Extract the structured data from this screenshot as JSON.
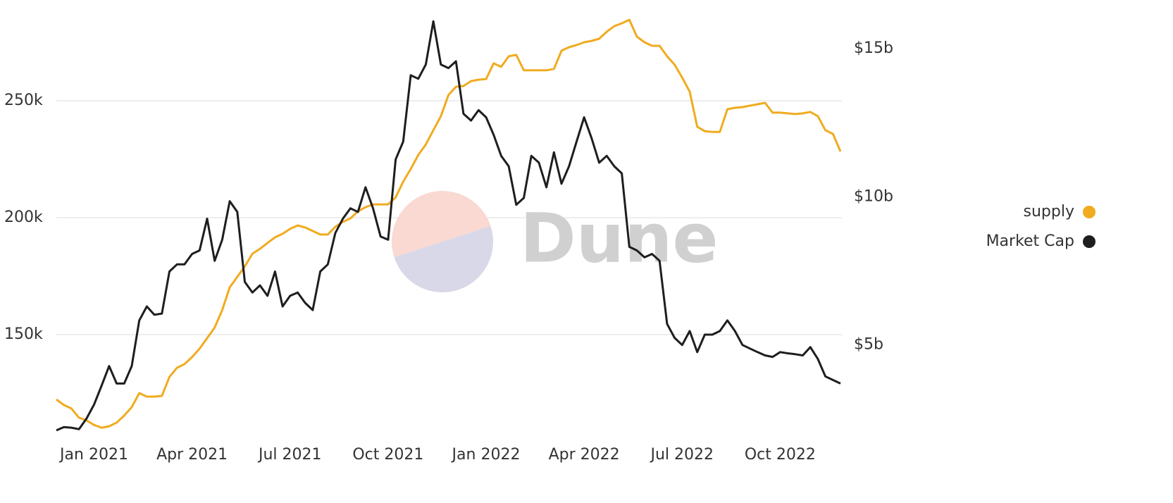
{
  "chart_data": {
    "type": "line",
    "watermark": "Dune",
    "categories": [
      null,
      null,
      null,
      null,
      null,
      "Jan 2021",
      null,
      null,
      null,
      null,
      null,
      null,
      null,
      null,
      null,
      null,
      null,
      null,
      "Apr 2021",
      null,
      null,
      null,
      null,
      null,
      null,
      null,
      null,
      null,
      null,
      null,
      null,
      "Jul 2021",
      null,
      null,
      null,
      null,
      null,
      null,
      null,
      null,
      null,
      null,
      null,
      null,
      "Oct 2021",
      null,
      null,
      null,
      null,
      null,
      null,
      null,
      null,
      null,
      null,
      null,
      null,
      "Jan 2022",
      null,
      null,
      null,
      null,
      null,
      null,
      null,
      null,
      null,
      null,
      null,
      null,
      "Apr 2022",
      null,
      null,
      null,
      null,
      null,
      null,
      null,
      null,
      null,
      null,
      null,
      null,
      "Jul 2022",
      null,
      null,
      null,
      null,
      null,
      null,
      null,
      null,
      null,
      null,
      null,
      null,
      "Oct 2022",
      null,
      null,
      null,
      null,
      null,
      null,
      null,
      null
    ],
    "series": [
      {
        "name": "supply",
        "color": "#f0ab1f",
        "axis": "y",
        "values": [
          122300,
          119900,
          118400,
          114500,
          113300,
          111400,
          110200,
          110800,
          112400,
          115400,
          119000,
          125000,
          123500,
          123500,
          123800,
          131900,
          135800,
          137400,
          140400,
          144000,
          148500,
          153000,
          160500,
          170200,
          174700,
          179200,
          184600,
          186700,
          189200,
          191600,
          193100,
          195200,
          196700,
          195800,
          194300,
          192800,
          192800,
          196100,
          198200,
          199700,
          202700,
          204500,
          205700,
          205700,
          205700,
          208700,
          215400,
          220800,
          226800,
          231300,
          237400,
          243400,
          252400,
          256000,
          256300,
          258400,
          259000,
          259300,
          266000,
          264500,
          269000,
          269600,
          263000,
          263000,
          263000,
          263000,
          263600,
          271400,
          272900,
          273800,
          275000,
          275600,
          276500,
          279500,
          281900,
          283100,
          284600,
          277400,
          275000,
          273500,
          273500,
          269000,
          265400,
          259900,
          253900,
          238900,
          237000,
          236700,
          236700,
          246400,
          247000,
          247300,
          247900,
          248500,
          249100,
          244900,
          244900,
          244600,
          244300,
          244600,
          245200,
          243400,
          237400,
          235800,
          228300
        ]
      },
      {
        "name": "Market Cap",
        "color": "#1e1e1e",
        "axis": "y2",
        "values": [
          2120000000,
          2230000000,
          2210000000,
          2160000000,
          2520000000,
          2990000000,
          3630000000,
          4290000000,
          3700000000,
          3700000000,
          4290000000,
          5830000000,
          6300000000,
          6020000000,
          6060000000,
          7480000000,
          7720000000,
          7720000000,
          8070000000,
          8190000000,
          9260000000,
          7840000000,
          8550000000,
          9850000000,
          9490000000,
          7130000000,
          6770000000,
          7010000000,
          6660000000,
          7480000000,
          6300000000,
          6660000000,
          6770000000,
          6420000000,
          6180000000,
          7480000000,
          7720000000,
          8780000000,
          9260000000,
          9610000000,
          9490000000,
          10320000000,
          9610000000,
          8660000000,
          8550000000,
          11260000000,
          11860000000,
          14100000000,
          13980000000,
          14460000000,
          15920000000,
          14460000000,
          14340000000,
          14570000000,
          12800000000,
          12570000000,
          12920000000,
          12680000000,
          12090000000,
          11380000000,
          11030000000,
          9730000000,
          9960000000,
          11380000000,
          11150000000,
          10320000000,
          11500000000,
          10440000000,
          11030000000,
          11860000000,
          12680000000,
          11970000000,
          11150000000,
          11380000000,
          11030000000,
          10790000000,
          8310000000,
          8190000000,
          7960000000,
          8070000000,
          7840000000,
          5710000000,
          5240000000,
          5000000000,
          5470000000,
          4760000000,
          5350000000,
          5350000000,
          5470000000,
          5830000000,
          5470000000,
          5000000000,
          4880000000,
          4760000000,
          4650000000,
          4600000000,
          4760000000,
          4720000000,
          4690000000,
          4650000000,
          4930000000,
          4530000000,
          3940000000,
          3820000000,
          3700000000
        ]
      }
    ],
    "ylim": [
      105000,
      285000
    ],
    "yticks": [
      {
        "value": 150000,
        "label": "150k"
      },
      {
        "value": 200000,
        "label": "200k"
      },
      {
        "value": 250000,
        "label": "250k"
      }
    ],
    "y2lim": [
      1800000000,
      16000000000
    ],
    "y2ticks": [
      {
        "value": 5000000000,
        "label": "$5b"
      },
      {
        "value": 10000000000,
        "label": "$10b"
      },
      {
        "value": 15000000000,
        "label": "$15b"
      }
    ],
    "grid": true,
    "legend": "right"
  }
}
